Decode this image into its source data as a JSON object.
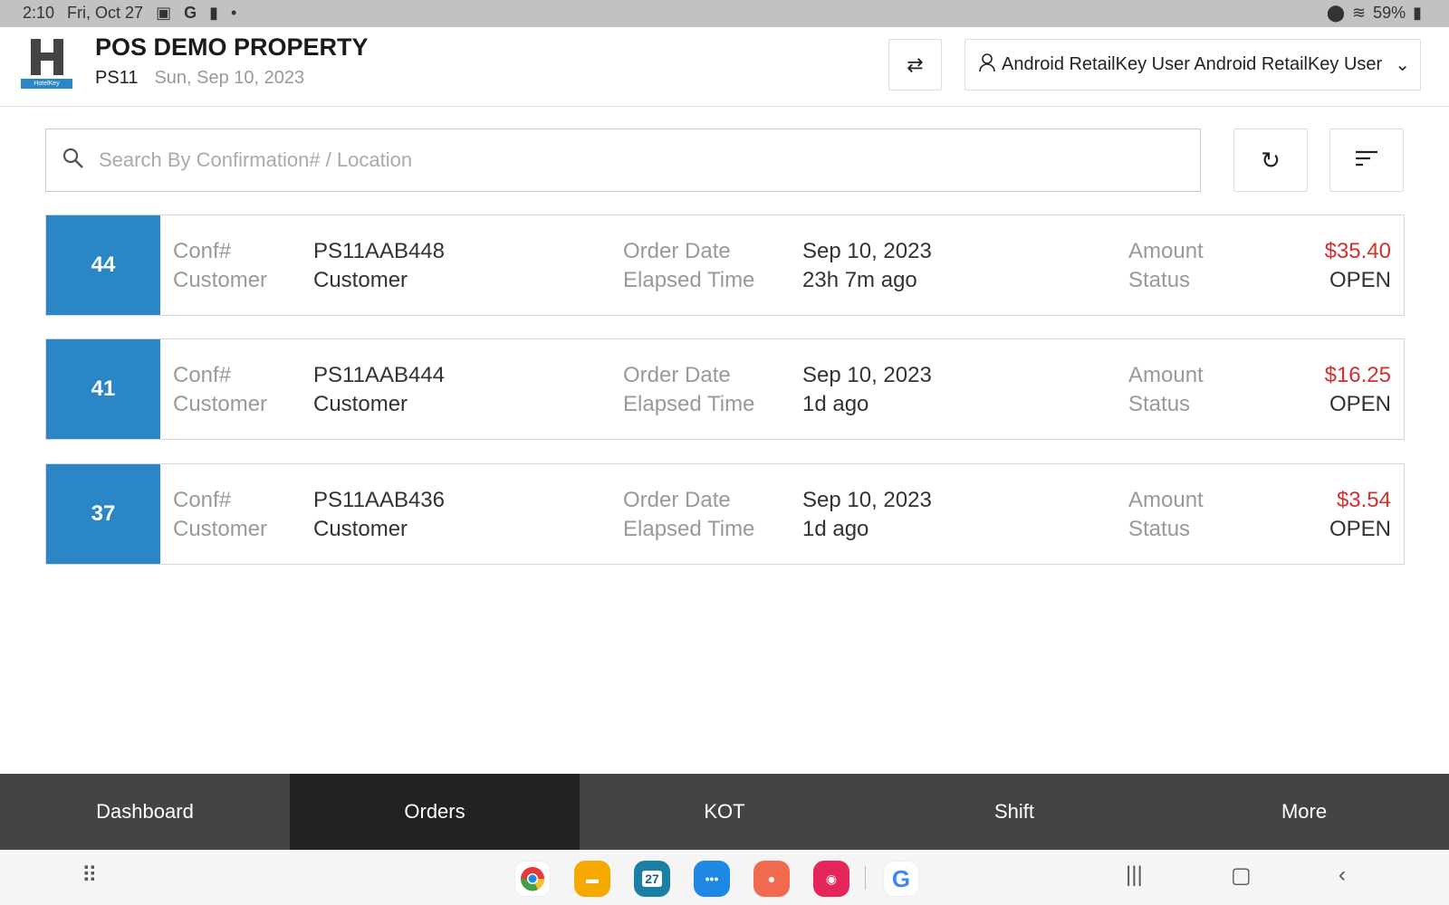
{
  "status_bar": {
    "time": "2:10",
    "date": "Fri, Oct 27",
    "battery": "59%"
  },
  "header": {
    "logo_text": "HotelKey",
    "title": "POS DEMO PROPERTY",
    "property_code": "PS11",
    "business_date": "Sun, Sep 10, 2023",
    "user": "Android RetailKey User Android RetailKey User"
  },
  "search": {
    "placeholder": "Search By Confirmation# / Location",
    "value": ""
  },
  "labels": {
    "conf": "Conf#",
    "customer": "Customer",
    "order_date": "Order Date",
    "elapsed": "Elapsed Time",
    "amount": "Amount",
    "status": "Status"
  },
  "orders": [
    {
      "number": "44",
      "conf": "PS11AAB448",
      "customer": "Customer",
      "order_date": "Sep 10, 2023",
      "elapsed": "23h 7m ago",
      "amount": "$35.40",
      "status": "OPEN"
    },
    {
      "number": "41",
      "conf": "PS11AAB444",
      "customer": "Customer",
      "order_date": "Sep 10, 2023",
      "elapsed": "1d ago",
      "amount": "$16.25",
      "status": "OPEN"
    },
    {
      "number": "37",
      "conf": "PS11AAB436",
      "customer": "Customer",
      "order_date": "Sep 10, 2023",
      "elapsed": "1d ago",
      "amount": "$3.54",
      "status": "OPEN"
    }
  ],
  "bottom_nav": [
    {
      "label": "Dashboard"
    },
    {
      "label": "Orders",
      "active": true
    },
    {
      "label": "KOT"
    },
    {
      "label": "Shift"
    },
    {
      "label": "More"
    }
  ],
  "dock": {
    "calendar_day": "27"
  },
  "colors": {
    "accent": "#2a86c5",
    "amount": "#d32f2f",
    "nav": "#444444",
    "nav_active": "#222222"
  }
}
